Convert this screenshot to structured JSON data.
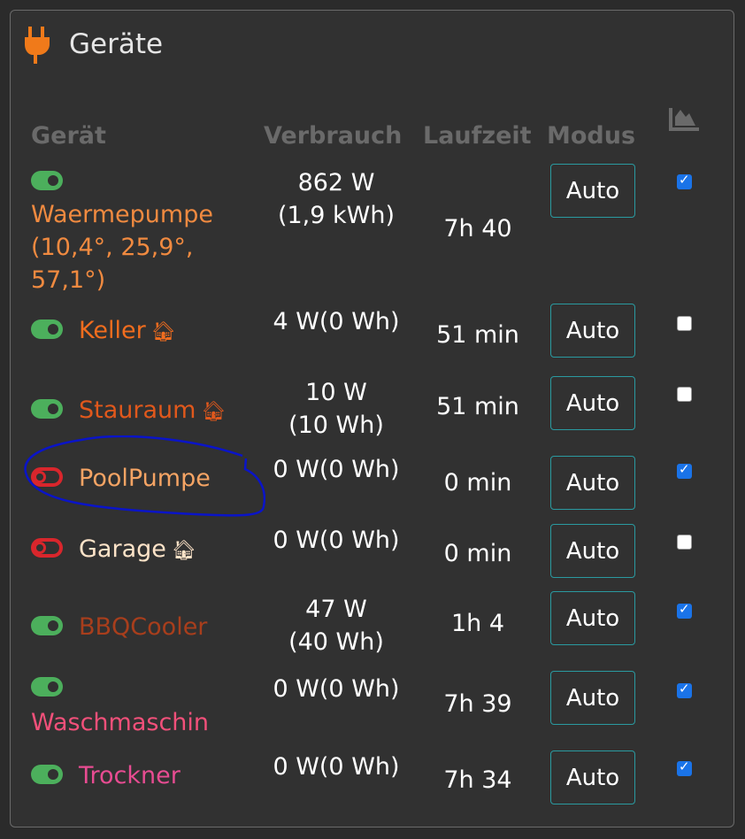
{
  "panel": {
    "title": "Geräte",
    "icon": "plug-icon",
    "icon_color": "#f07a1a"
  },
  "headers": {
    "device": "Gerät",
    "consumption": "Verbrauch",
    "runtime": "Laufzeit",
    "mode": "Modus",
    "chart_icon": "area-chart-icon"
  },
  "devices": [
    {
      "name": "Waermepumpe",
      "extra": "(10,4°, 25,9°, 57,1°)",
      "on": true,
      "house": false,
      "color": "#f08a40",
      "power": "862 W",
      "energy": "(1,9 kWh)",
      "runtime": "7h 40",
      "mode": "Auto",
      "chart": true
    },
    {
      "name": "Keller",
      "on": true,
      "house": true,
      "color": "#f26d1e",
      "power": "4 W(0 Wh)",
      "energy": "",
      "runtime": "51 min",
      "mode": "Auto",
      "chart": false
    },
    {
      "name": "Stauraum",
      "on": true,
      "house": true,
      "color": "#e0581c",
      "power": "10 W",
      "energy": "(10 Wh)",
      "runtime": "51 min",
      "mode": "Auto",
      "chart": false
    },
    {
      "name": "PoolPumpe",
      "on": false,
      "house": false,
      "color": "#f5a464",
      "power": "0 W(0 Wh)",
      "energy": "",
      "runtime": "0 min",
      "mode": "Auto",
      "chart": true
    },
    {
      "name": "Garage",
      "on": false,
      "house": true,
      "color": "#fde3c8",
      "power": "0 W(0 Wh)",
      "energy": "",
      "runtime": "0 min",
      "mode": "Auto",
      "chart": false
    },
    {
      "name": "BBQCooler",
      "on": true,
      "house": false,
      "color": "#a83e1c",
      "power": "47 W",
      "energy": "(40 Wh)",
      "runtime": "1h 4",
      "mode": "Auto",
      "chart": true
    },
    {
      "name": "Waschmaschin",
      "on": true,
      "house": false,
      "color": "#f2507a",
      "power": "0 W(0 Wh)",
      "energy": "",
      "runtime": "7h 39",
      "mode": "Auto",
      "chart": true
    },
    {
      "name": "Trockner",
      "on": true,
      "house": false,
      "color": "#e84c92",
      "power": "0 W(0 Wh)",
      "energy": "",
      "runtime": "7h 34",
      "mode": "Auto",
      "chart": true
    }
  ],
  "annotation_color": "#0a14c8"
}
